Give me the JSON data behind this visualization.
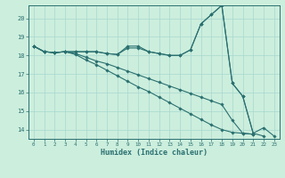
{
  "xlabel": "Humidex (Indice chaleur)",
  "ylabel": "",
  "bg_color": "#cceedd",
  "line_color": "#2a7070",
  "xlim": [
    -0.5,
    23.5
  ],
  "ylim": [
    13.5,
    20.7
  ],
  "yticks": [
    14,
    15,
    16,
    17,
    18,
    19,
    20
  ],
  "xticks": [
    0,
    1,
    2,
    3,
    4,
    5,
    6,
    7,
    8,
    9,
    10,
    11,
    12,
    13,
    14,
    15,
    16,
    17,
    18,
    19,
    20,
    21,
    22,
    23
  ],
  "series": [
    {
      "x": [
        0,
        1,
        2,
        3,
        4,
        5,
        6,
        7,
        8,
        9,
        10,
        11,
        12,
        13,
        14,
        15,
        16,
        17,
        18,
        19,
        20,
        21,
        22,
        23
      ],
      "y": [
        18.5,
        18.2,
        18.15,
        18.2,
        18.2,
        18.2,
        18.2,
        18.1,
        18.05,
        18.5,
        18.5,
        18.2,
        18.1,
        18.0,
        18.0,
        18.3,
        19.7,
        20.2,
        20.7,
        16.5,
        15.8,
        13.8,
        14.1,
        13.65
      ]
    },
    {
      "x": [
        0,
        1,
        2,
        3,
        4,
        5,
        6,
        7,
        8,
        9,
        10,
        11,
        12,
        13,
        14,
        15,
        16,
        17,
        18,
        19,
        20,
        21,
        22
      ],
      "y": [
        18.5,
        18.2,
        18.15,
        18.2,
        18.2,
        18.2,
        18.2,
        18.1,
        18.05,
        18.4,
        18.4,
        18.2,
        18.1,
        18.0,
        18.0,
        18.3,
        19.7,
        20.2,
        20.7,
        16.5,
        15.8,
        13.8,
        13.65
      ]
    },
    {
      "x": [
        0,
        1,
        2,
        3,
        4,
        5,
        6,
        7,
        8,
        9,
        10,
        11,
        12,
        13,
        14,
        15,
        16,
        17,
        18,
        19,
        20,
        21
      ],
      "y": [
        18.5,
        18.2,
        18.15,
        18.2,
        18.1,
        17.9,
        17.7,
        17.55,
        17.35,
        17.15,
        16.95,
        16.75,
        16.55,
        16.35,
        16.15,
        15.95,
        15.75,
        15.55,
        15.35,
        14.5,
        13.8,
        13.75
      ]
    },
    {
      "x": [
        0,
        1,
        2,
        3,
        4,
        5,
        6,
        7,
        8,
        9,
        10,
        11,
        12,
        13,
        14,
        15,
        16,
        17,
        18,
        19,
        20,
        21
      ],
      "y": [
        18.5,
        18.2,
        18.15,
        18.2,
        18.05,
        17.75,
        17.5,
        17.2,
        16.9,
        16.6,
        16.3,
        16.05,
        15.75,
        15.45,
        15.15,
        14.85,
        14.55,
        14.25,
        14.0,
        13.85,
        13.8,
        13.75
      ]
    }
  ]
}
